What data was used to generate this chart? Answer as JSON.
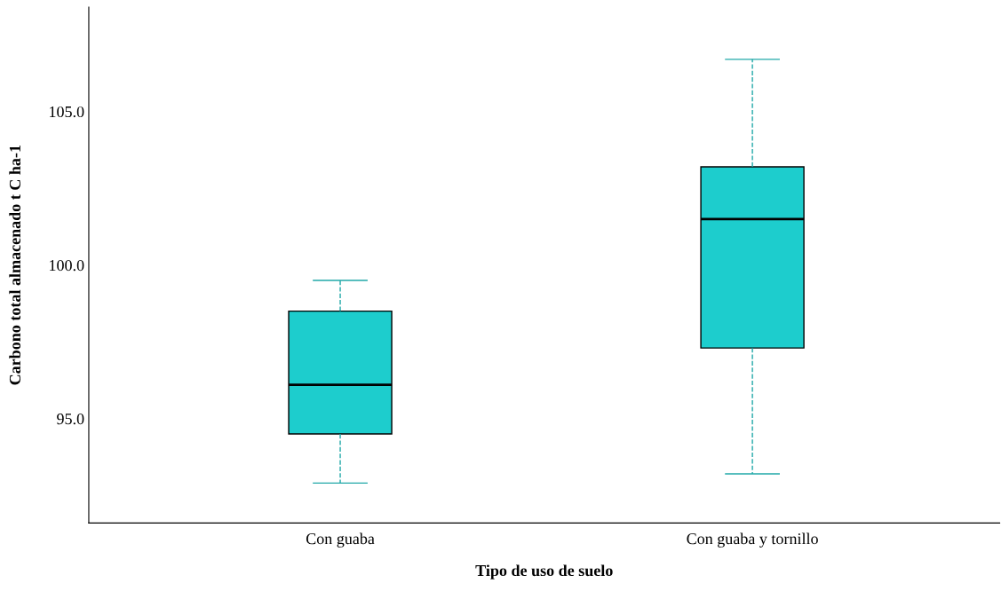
{
  "chart_data": {
    "type": "box",
    "xlabel": "Tipo de uso de suelo",
    "ylabel": "Carbono total almacenado t C ha-1",
    "categories": [
      "Con guaba",
      "Con guaba y tornillo"
    ],
    "color": "#1dcdcd",
    "boxes": [
      {
        "low": 92.9,
        "q1": 94.5,
        "median": 96.1,
        "q3": 98.5,
        "high": 99.5
      },
      {
        "low": 93.2,
        "q1": 97.3,
        "median": 101.5,
        "q3": 103.2,
        "high": 106.7
      }
    ],
    "ylim": [
      91.6,
      108.4
    ],
    "yticks": [
      {
        "value": 95,
        "label": "95.0"
      },
      {
        "value": 100,
        "label": "100.0"
      },
      {
        "value": 105,
        "label": "105.0"
      }
    ],
    "grid": false
  }
}
